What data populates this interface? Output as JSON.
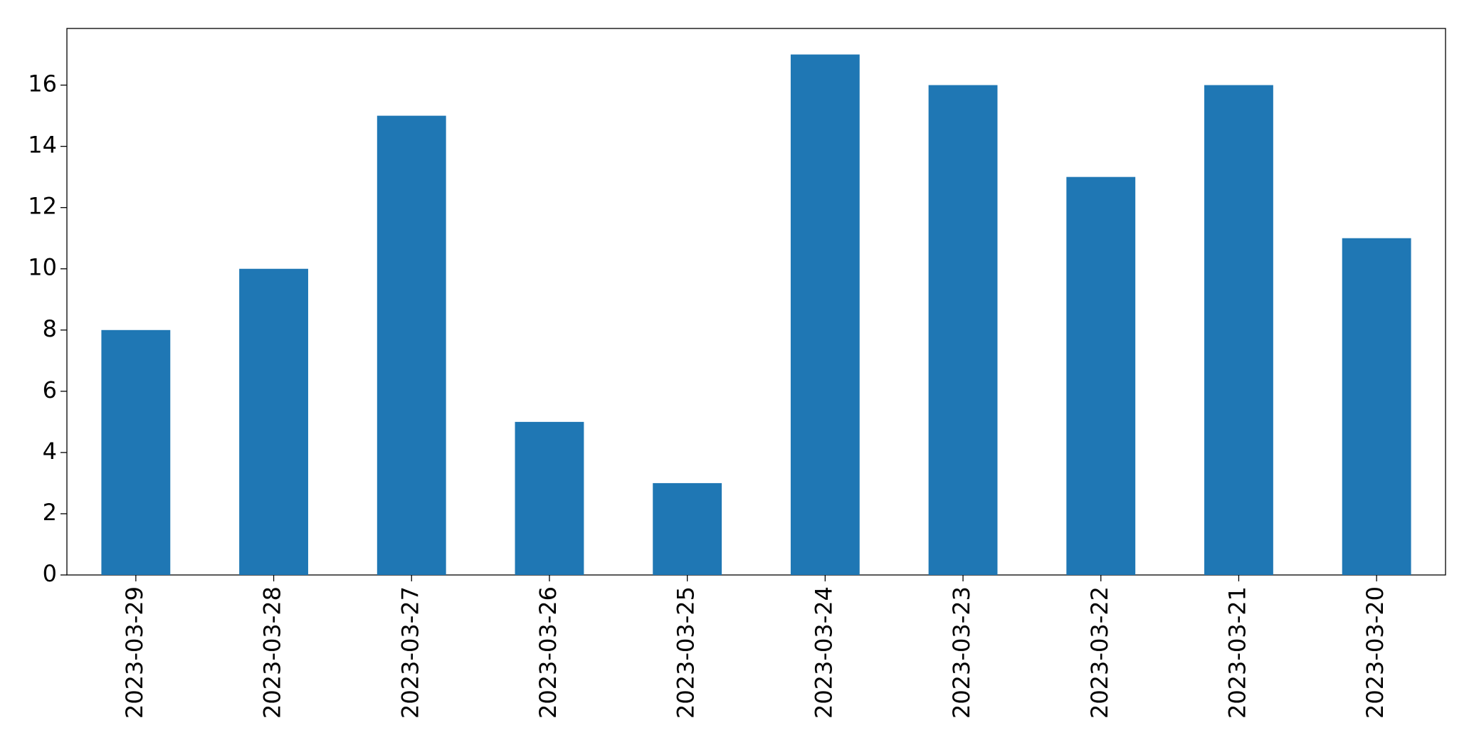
{
  "chart_data": {
    "type": "bar",
    "categories": [
      "2023-03-29",
      "2023-03-28",
      "2023-03-27",
      "2023-03-26",
      "2023-03-25",
      "2023-03-24",
      "2023-03-23",
      "2023-03-22",
      "2023-03-21",
      "2023-03-20"
    ],
    "values": [
      8,
      10,
      15,
      5,
      3,
      17,
      16,
      13,
      16,
      11
    ],
    "color": "#1f77b4",
    "ylim": [
      0,
      17.85
    ],
    "yticks": [
      0,
      2,
      4,
      6,
      8,
      10,
      12,
      14,
      16
    ],
    "grid": false
  }
}
